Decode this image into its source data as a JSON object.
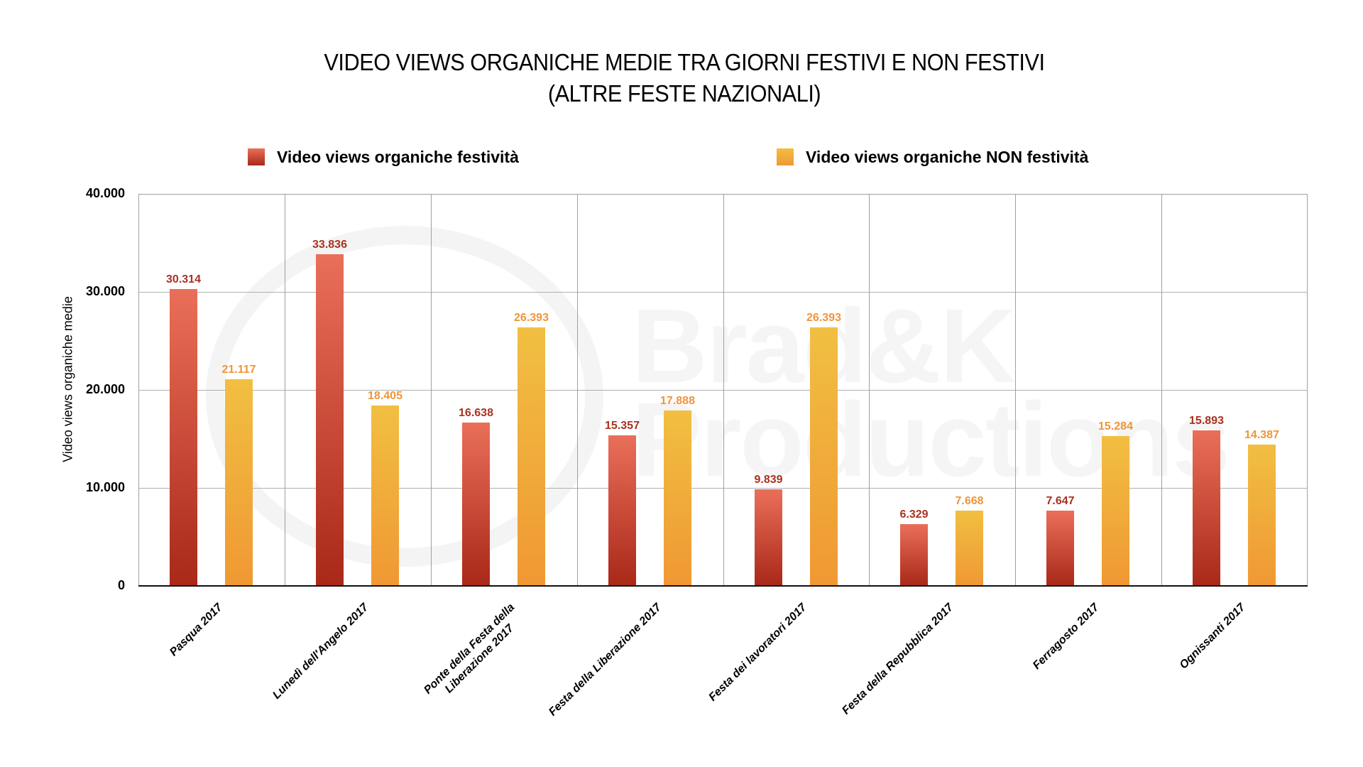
{
  "title": {
    "line1": "VIDEO VIEWS ORGANICHE MEDIE TRA GIORNI FESTIVI E NON FESTIVI",
    "line2": "(ALTRE FESTE NAZIONALI)"
  },
  "legend": [
    {
      "label": "Video views organiche festività",
      "color": "#c8412c"
    },
    {
      "label": "Video views organiche NON festività",
      "color": "#f0ad3b"
    }
  ],
  "y_axis": {
    "title": "Video views organiche medie",
    "ticks": [
      "0",
      "10.000",
      "20.000",
      "30.000",
      "40.000"
    ]
  },
  "watermark": {
    "line1": "Brad&K",
    "line2": "Productions"
  },
  "chart_data": {
    "type": "bar",
    "title": "VIDEO VIEWS ORGANICHE MEDIE TRA GIORNI FESTIVI E NON FESTIVI (ALTRE FESTE NAZIONALI)",
    "xlabel": "",
    "ylabel": "Video views organiche medie",
    "ylim": [
      0,
      40000
    ],
    "yticks": [
      0,
      10000,
      20000,
      30000,
      40000
    ],
    "grid": true,
    "legend_position": "top",
    "categories": [
      "Pasqua 2017",
      "Lunedì dell'Angelo 2017",
      "Ponte della Festa della Liberazione 2017",
      "Festa della Liberazione 2017",
      "Festa dei lavoratori 2017",
      "Festa della Repubblica 2017",
      "Ferragosto 2017",
      "Ognissanti 2017"
    ],
    "category_lines": [
      [
        "Pasqua 2017"
      ],
      [
        "Lunedì dell'Angelo 2017"
      ],
      [
        "Ponte della Festa della",
        "Liberazione 2017"
      ],
      [
        "Festa della Liberazione 2017"
      ],
      [
        "Festa dei lavoratori 2017"
      ],
      [
        "Festa della Repubblica 2017"
      ],
      [
        "Ferragosto 2017"
      ],
      [
        "Ognissanti 2017"
      ]
    ],
    "series": [
      {
        "name": "Video views organiche festività",
        "color_top": "#ea6f59",
        "color_bottom": "#a92818",
        "values": [
          30314,
          33836,
          16638,
          15357,
          9839,
          6329,
          7647,
          15893
        ],
        "labels": [
          "30.314",
          "33.836",
          "16.638",
          "15.357",
          "9.839",
          "6.329",
          "7.647",
          "15.893"
        ]
      },
      {
        "name": "Video views organiche NON festività",
        "color_top": "#f1bf42",
        "color_bottom": "#f09833",
        "values": [
          21117,
          18405,
          26393,
          17888,
          26393,
          7668,
          15284,
          14387
        ],
        "labels": [
          "21.117",
          "18.405",
          "26.393",
          "17.888",
          "26.393",
          "7.668",
          "15.284",
          "14.387"
        ]
      }
    ]
  }
}
